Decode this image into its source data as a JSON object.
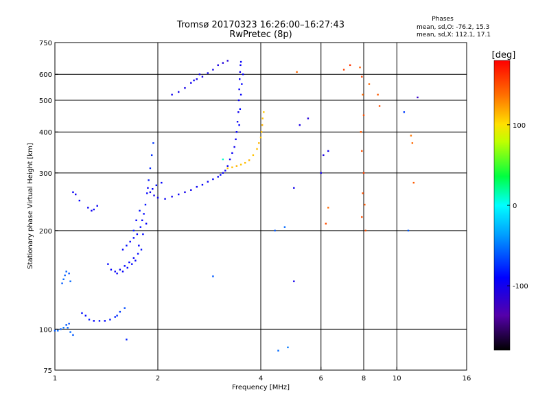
{
  "header": {
    "title": "Tromsø 20170323 16:26:00–16:27:43",
    "subtitle": "RwPretec (8p)",
    "phase_block": {
      "heading": "Phases",
      "line_o": "mean, sd,O: -76.2, 15.3",
      "line_x": "mean, sd,X: 112.1, 17.1"
    }
  },
  "colorbar": {
    "unit_label": "[deg]",
    "ticks": [
      {
        "value": 100,
        "label": "100"
      },
      {
        "value": 0,
        "label": "0"
      },
      {
        "value": -100,
        "label": "-100"
      }
    ],
    "range": [
      -180,
      180
    ]
  },
  "chart_data": {
    "type": "scatter",
    "xlabel": "Frequency [MHz]",
    "ylabel": "Stationary phase Virtual Height [km]",
    "xscale": "log",
    "yscale": "log",
    "xlim": [
      1,
      16
    ],
    "ylim": [
      75,
      750
    ],
    "x_ticks": [
      {
        "value": 1,
        "label": "1"
      },
      {
        "value": 2,
        "label": "2"
      },
      {
        "value": 4,
        "label": "4"
      },
      {
        "value": 6,
        "label": "6"
      },
      {
        "value": 8,
        "label": "8"
      },
      {
        "value": 10,
        "label": "10"
      },
      {
        "value": 16,
        "label": "16"
      }
    ],
    "y_ticks": [
      {
        "value": 75,
        "label": "75"
      },
      {
        "value": 100,
        "label": "100"
      },
      {
        "value": 200,
        "label": "200"
      },
      {
        "value": 300,
        "label": "300"
      },
      {
        "value": 400,
        "label": "400"
      },
      {
        "value": 500,
        "label": "500"
      },
      {
        "value": 600,
        "label": "600"
      },
      {
        "value": 750,
        "label": "750"
      }
    ],
    "grid_x": [
      1,
      2,
      4,
      6,
      8,
      10,
      16
    ],
    "grid_y": [
      100,
      200,
      300,
      400,
      500,
      600
    ],
    "grid": true,
    "color_by": "phase_deg",
    "series": [
      {
        "points": [
          [
            1.0,
            99,
            -60
          ],
          [
            1.02,
            99,
            -55
          ],
          [
            1.04,
            100,
            -58
          ],
          [
            1.06,
            101,
            -52
          ],
          [
            1.08,
            103,
            -60
          ],
          [
            1.1,
            104,
            -65
          ],
          [
            1.09,
            101,
            -58
          ],
          [
            1.11,
            98,
            -55
          ],
          [
            1.13,
            96,
            -60
          ],
          [
            1.2,
            112,
            -85
          ],
          [
            1.23,
            110,
            -88
          ],
          [
            1.26,
            107,
            -82
          ],
          [
            1.3,
            106,
            -90
          ],
          [
            1.35,
            106,
            -85
          ],
          [
            1.4,
            106,
            -88
          ],
          [
            1.45,
            107,
            -82
          ],
          [
            1.5,
            109,
            -80
          ],
          [
            1.55,
            113,
            -70
          ],
          [
            1.6,
            116,
            -65
          ],
          [
            1.52,
            110,
            -75
          ],
          [
            1.05,
            138,
            -60
          ],
          [
            1.06,
            142,
            -55
          ],
          [
            1.08,
            150,
            -58
          ],
          [
            1.1,
            148,
            -62
          ],
          [
            1.11,
            140,
            -55
          ],
          [
            1.07,
            146,
            -60
          ],
          [
            1.13,
            262,
            -95
          ],
          [
            1.15,
            258,
            -98
          ],
          [
            1.18,
            247,
            -90
          ],
          [
            1.25,
            235,
            -95
          ],
          [
            1.3,
            232,
            -92
          ],
          [
            1.33,
            238,
            -95
          ],
          [
            1.28,
            230,
            -98
          ],
          [
            1.43,
            158,
            -88
          ],
          [
            1.46,
            152,
            -90
          ],
          [
            1.5,
            150,
            -95
          ],
          [
            1.55,
            152,
            -92
          ],
          [
            1.6,
            156,
            -88
          ],
          [
            1.65,
            160,
            -90
          ],
          [
            1.7,
            165,
            -93
          ],
          [
            1.75,
            170,
            -88
          ],
          [
            1.52,
            148,
            -90
          ],
          [
            1.58,
            150,
            -92
          ],
          [
            1.63,
            154,
            -90
          ],
          [
            1.68,
            158,
            -87
          ],
          [
            1.72,
            162,
            -92
          ],
          [
            1.58,
            175,
            -90
          ],
          [
            1.62,
            180,
            -85
          ],
          [
            1.66,
            185,
            -92
          ],
          [
            1.7,
            190,
            -88
          ],
          [
            1.74,
            195,
            -90
          ],
          [
            1.78,
            205,
            -85
          ],
          [
            1.8,
            215,
            -92
          ],
          [
            1.82,
            225,
            -88
          ],
          [
            1.84,
            240,
            -85
          ],
          [
            1.86,
            260,
            -90
          ],
          [
            1.88,
            285,
            -82
          ],
          [
            1.9,
            310,
            -78
          ],
          [
            1.92,
            340,
            -75
          ],
          [
            1.94,
            370,
            -72
          ],
          [
            1.76,
            180,
            -90
          ],
          [
            1.79,
            175,
            -85
          ],
          [
            1.81,
            195,
            -88
          ],
          [
            1.85,
            210,
            -92
          ],
          [
            1.7,
            200,
            -80
          ],
          [
            1.73,
            215,
            -90
          ],
          [
            1.77,
            230,
            -85
          ],
          [
            1.87,
            270,
            -95
          ],
          [
            1.9,
            262,
            -98
          ],
          [
            1.95,
            256,
            -100
          ],
          [
            2.0,
            252,
            -98
          ],
          [
            2.1,
            250,
            -95
          ],
          [
            2.2,
            254,
            -98
          ],
          [
            2.3,
            258,
            -95
          ],
          [
            2.4,
            262,
            -100
          ],
          [
            2.5,
            266,
            -98
          ],
          [
            2.6,
            272,
            -95
          ],
          [
            2.7,
            276,
            -92
          ],
          [
            2.8,
            282,
            -95
          ],
          [
            2.9,
            287,
            -90
          ],
          [
            3.0,
            292,
            -92
          ],
          [
            3.05,
            296,
            -88
          ],
          [
            1.93,
            268,
            -90
          ],
          [
            1.98,
            275,
            -85
          ],
          [
            2.05,
            280,
            -90
          ],
          [
            3.1,
            300,
            -95
          ],
          [
            3.15,
            305,
            -92
          ],
          [
            3.2,
            315,
            -95
          ],
          [
            3.25,
            330,
            -98
          ],
          [
            3.3,
            345,
            -95
          ],
          [
            3.35,
            360,
            -98
          ],
          [
            3.38,
            380,
            -95
          ],
          [
            3.4,
            400,
            -92
          ],
          [
            3.42,
            430,
            -95
          ],
          [
            3.44,
            460,
            -98
          ],
          [
            3.45,
            500,
            -95
          ],
          [
            3.46,
            540,
            -92
          ],
          [
            3.47,
            580,
            -95
          ],
          [
            3.48,
            610,
            -98
          ],
          [
            3.49,
            640,
            -95
          ],
          [
            3.5,
            655,
            -92
          ],
          [
            3.46,
            420,
            -90
          ],
          [
            3.48,
            470,
            -88
          ],
          [
            3.5,
            520,
            -92
          ],
          [
            3.52,
            560,
            -90
          ],
          [
            3.55,
            600,
            -92
          ],
          [
            2.3,
            530,
            -100
          ],
          [
            2.4,
            545,
            -102
          ],
          [
            2.5,
            565,
            -98
          ],
          [
            2.6,
            580,
            -100
          ],
          [
            2.7,
            590,
            -102
          ],
          [
            2.8,
            605,
            -98
          ],
          [
            2.9,
            620,
            -100
          ],
          [
            3.0,
            640,
            -105
          ],
          [
            3.1,
            650,
            -108
          ],
          [
            3.2,
            660,
            -110
          ],
          [
            2.55,
            575,
            -95
          ],
          [
            2.65,
            600,
            -100
          ],
          [
            2.2,
            520,
            -98
          ],
          [
            3.1,
            330,
            10
          ],
          [
            3.2,
            310,
            110
          ],
          [
            3.3,
            312,
            112
          ],
          [
            3.4,
            315,
            115
          ],
          [
            3.5,
            318,
            110
          ],
          [
            3.6,
            322,
            112
          ],
          [
            3.7,
            328,
            115
          ],
          [
            3.8,
            340,
            110
          ],
          [
            3.9,
            355,
            112
          ],
          [
            3.95,
            370,
            115
          ],
          [
            4.0,
            385,
            110
          ],
          [
            4.02,
            400,
            112
          ],
          [
            4.04,
            420,
            115
          ],
          [
            4.05,
            440,
            110
          ],
          [
            4.08,
            460,
            108
          ],
          [
            5.1,
            610,
            140
          ],
          [
            6.2,
            210,
            150
          ],
          [
            6.3,
            235,
            140
          ],
          [
            7.0,
            620,
            155
          ],
          [
            7.3,
            640,
            160
          ],
          [
            7.8,
            630,
            145
          ],
          [
            7.9,
            590,
            155
          ],
          [
            7.95,
            520,
            140
          ],
          [
            8.0,
            450,
            150
          ],
          [
            7.85,
            400,
            145
          ],
          [
            7.9,
            350,
            150
          ],
          [
            8.0,
            300,
            155
          ],
          [
            7.95,
            260,
            150
          ],
          [
            8.05,
            240,
            145
          ],
          [
            7.9,
            220,
            150
          ],
          [
            8.1,
            200,
            150
          ],
          [
            8.3,
            560,
            140
          ],
          [
            8.8,
            520,
            145
          ],
          [
            8.9,
            480,
            150
          ],
          [
            11.0,
            390,
            135
          ],
          [
            11.1,
            370,
            140
          ],
          [
            11.2,
            280,
            145
          ],
          [
            5.0,
            140,
            -100
          ],
          [
            5.0,
            270,
            -100
          ],
          [
            6.1,
            340,
            -105
          ],
          [
            6.3,
            350,
            -100
          ],
          [
            5.5,
            440,
            -110
          ],
          [
            5.2,
            420,
            -105
          ],
          [
            6.0,
            300,
            -100
          ],
          [
            11.5,
            510,
            -120
          ],
          [
            10.5,
            460,
            -70
          ],
          [
            10.8,
            200,
            -60
          ],
          [
            4.4,
            200,
            -60
          ],
          [
            4.7,
            205,
            -55
          ],
          [
            4.8,
            88,
            -50
          ],
          [
            4.5,
            86,
            -55
          ],
          [
            2.9,
            145,
            -60
          ],
          [
            1.62,
            93,
            -80
          ]
        ]
      }
    ]
  }
}
